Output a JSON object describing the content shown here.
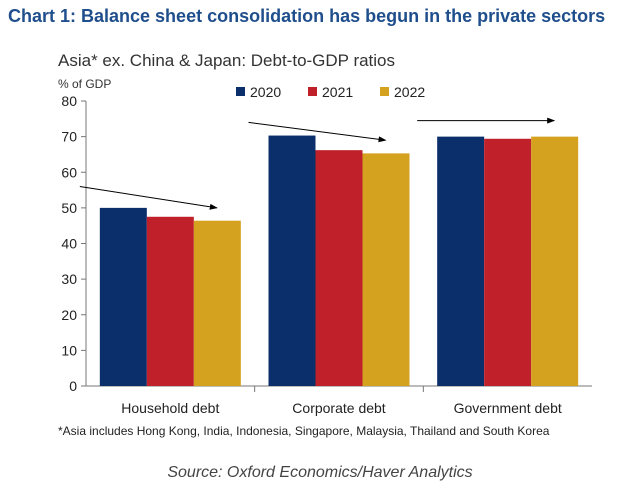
{
  "heading": "Chart 1: Balance sheet consolidation has begun in the private sectors",
  "footnote": "*Asia includes Hong Kong, India, Indonesia, Singapore, Malaysia, Thailand and South Korea",
  "source": "Source: Oxford Economics/Haver Analytics",
  "chart_data": {
    "type": "bar",
    "title": "Asia* ex. China & Japan: Debt-to-GDP ratios",
    "ylabel": "% of GDP",
    "xlabel": "",
    "categories": [
      "Household debt",
      "Corporate debt",
      "Government debt"
    ],
    "series": [
      {
        "name": "2020",
        "color": "#0b2f6b",
        "values": [
          50,
          70.3,
          70
        ]
      },
      {
        "name": "2021",
        "color": "#c0202a",
        "values": [
          47.5,
          66.2,
          69.4
        ]
      },
      {
        "name": "2022",
        "color": "#d4a21f",
        "values": [
          46.4,
          65.3,
          70
        ]
      }
    ],
    "ylim": [
      0,
      80
    ],
    "yticks": [
      0,
      10,
      20,
      30,
      40,
      50,
      60,
      70,
      80
    ],
    "grid": false,
    "legend": "top-center",
    "trend_arrows": [
      {
        "category": "Household debt",
        "from": 56,
        "to": 50
      },
      {
        "category": "Corporate debt",
        "from": 74,
        "to": 69
      },
      {
        "category": "Government debt",
        "from": 74.5,
        "to": 74.5
      }
    ]
  }
}
